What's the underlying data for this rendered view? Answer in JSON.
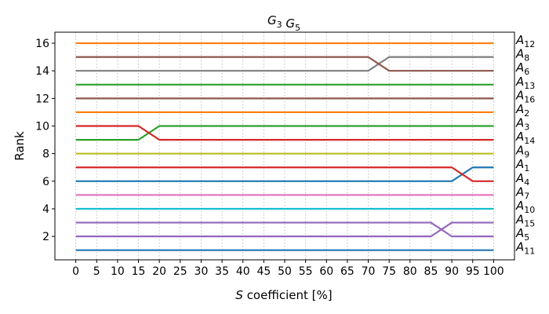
{
  "chart_data": {
    "type": "line",
    "title": {
      "parts": [
        {
          "base": "G",
          "sub": "3"
        },
        {
          "base": "G",
          "sub": "5"
        }
      ]
    },
    "xlabel": {
      "italic": "S",
      "rest": " coefficient [%]"
    },
    "ylabel": "Rank",
    "x": [
      0,
      5,
      10,
      15,
      20,
      25,
      30,
      35,
      40,
      45,
      50,
      55,
      60,
      65,
      70,
      75,
      80,
      85,
      90,
      95,
      100
    ],
    "xlim": [
      -5,
      105
    ],
    "ylim": [
      0.3,
      16.8
    ],
    "yticks": [
      2,
      4,
      6,
      8,
      10,
      12,
      14,
      16
    ],
    "grid": {
      "x": true,
      "y": false
    },
    "legend": "right-edge-labels",
    "series": [
      {
        "label_base": "A",
        "label_sub": "12",
        "color": "#ff7f0e",
        "values": [
          16,
          16,
          16,
          16,
          16,
          16,
          16,
          16,
          16,
          16,
          16,
          16,
          16,
          16,
          16,
          16,
          16,
          16,
          16,
          16,
          16
        ]
      },
      {
        "label_base": "A",
        "label_sub": "8",
        "color": "#7f7f7f",
        "values": [
          14,
          14,
          14,
          14,
          14,
          14,
          14,
          14,
          14,
          14,
          14,
          14,
          14,
          14,
          14,
          15,
          15,
          15,
          15,
          15,
          15
        ]
      },
      {
        "label_base": "A",
        "label_sub": "6",
        "color": "#8c564b",
        "values": [
          15,
          15,
          15,
          15,
          15,
          15,
          15,
          15,
          15,
          15,
          15,
          15,
          15,
          15,
          15,
          14,
          14,
          14,
          14,
          14,
          14
        ]
      },
      {
        "label_base": "A",
        "label_sub": "13",
        "color": "#2ca02c",
        "values": [
          13,
          13,
          13,
          13,
          13,
          13,
          13,
          13,
          13,
          13,
          13,
          13,
          13,
          13,
          13,
          13,
          13,
          13,
          13,
          13,
          13
        ]
      },
      {
        "label_base": "A",
        "label_sub": "16",
        "color": "#8c564b",
        "values": [
          12,
          12,
          12,
          12,
          12,
          12,
          12,
          12,
          12,
          12,
          12,
          12,
          12,
          12,
          12,
          12,
          12,
          12,
          12,
          12,
          12
        ]
      },
      {
        "label_base": "A",
        "label_sub": "2",
        "color": "#ff7f0e",
        "values": [
          11,
          11,
          11,
          11,
          11,
          11,
          11,
          11,
          11,
          11,
          11,
          11,
          11,
          11,
          11,
          11,
          11,
          11,
          11,
          11,
          11
        ]
      },
      {
        "label_base": "A",
        "label_sub": "3",
        "color": "#2ca02c",
        "values": [
          9,
          9,
          9,
          9,
          10,
          10,
          10,
          10,
          10,
          10,
          10,
          10,
          10,
          10,
          10,
          10,
          10,
          10,
          10,
          10,
          10
        ]
      },
      {
        "label_base": "A",
        "label_sub": "14",
        "color": "#d62728",
        "values": [
          10,
          10,
          10,
          10,
          9,
          9,
          9,
          9,
          9,
          9,
          9,
          9,
          9,
          9,
          9,
          9,
          9,
          9,
          9,
          9,
          9
        ]
      },
      {
        "label_base": "A",
        "label_sub": "9",
        "color": "#bcbd22",
        "values": [
          8,
          8,
          8,
          8,
          8,
          8,
          8,
          8,
          8,
          8,
          8,
          8,
          8,
          8,
          8,
          8,
          8,
          8,
          8,
          8,
          8
        ]
      },
      {
        "label_base": "A",
        "label_sub": "1",
        "color": "#1f77b4",
        "values": [
          6,
          6,
          6,
          6,
          6,
          6,
          6,
          6,
          6,
          6,
          6,
          6,
          6,
          6,
          6,
          6,
          6,
          6,
          6,
          7,
          7
        ]
      },
      {
        "label_base": "A",
        "label_sub": "4",
        "color": "#d62728",
        "values": [
          7,
          7,
          7,
          7,
          7,
          7,
          7,
          7,
          7,
          7,
          7,
          7,
          7,
          7,
          7,
          7,
          7,
          7,
          7,
          6,
          6
        ]
      },
      {
        "label_base": "A",
        "label_sub": "7",
        "color": "#e377c2",
        "values": [
          5,
          5,
          5,
          5,
          5,
          5,
          5,
          5,
          5,
          5,
          5,
          5,
          5,
          5,
          5,
          5,
          5,
          5,
          5,
          5,
          5
        ]
      },
      {
        "label_base": "A",
        "label_sub": "10",
        "color": "#17becf",
        "values": [
          4,
          4,
          4,
          4,
          4,
          4,
          4,
          4,
          4,
          4,
          4,
          4,
          4,
          4,
          4,
          4,
          4,
          4,
          4,
          4,
          4
        ]
      },
      {
        "label_base": "A",
        "label_sub": "15",
        "color": "#9467bd",
        "values": [
          2,
          2,
          2,
          2,
          2,
          2,
          2,
          2,
          2,
          2,
          2,
          2,
          2,
          2,
          2,
          2,
          2,
          2,
          3,
          3,
          3
        ]
      },
      {
        "label_base": "A",
        "label_sub": "5",
        "color": "#9467bd",
        "values": [
          3,
          3,
          3,
          3,
          3,
          3,
          3,
          3,
          3,
          3,
          3,
          3,
          3,
          3,
          3,
          3,
          3,
          3,
          2,
          2,
          2
        ]
      },
      {
        "label_base": "A",
        "label_sub": "11",
        "color": "#1f77b4",
        "values": [
          1,
          1,
          1,
          1,
          1,
          1,
          1,
          1,
          1,
          1,
          1,
          1,
          1,
          1,
          1,
          1,
          1,
          1,
          1,
          1,
          1
        ]
      }
    ]
  }
}
